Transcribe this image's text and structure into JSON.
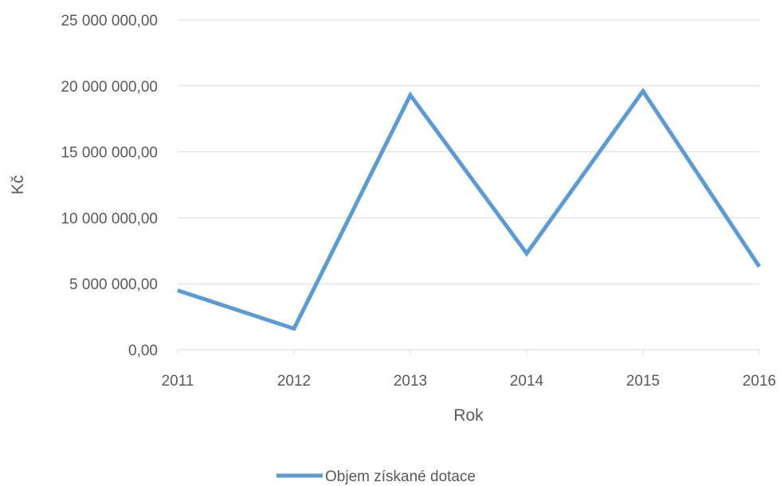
{
  "chart_data": {
    "type": "line",
    "title": "",
    "xlabel": "Rok",
    "ylabel": "Kč",
    "x": [
      "2011",
      "2012",
      "2013",
      "2014",
      "2015",
      "2016"
    ],
    "y_ticks": [
      "0,00",
      "5 000 000,00",
      "10 000 000,00",
      "15 000 000,00",
      "20 000 000,00",
      "25 000 000,00"
    ],
    "ylim": [
      0,
      25000000
    ],
    "grid": true,
    "legend_position": "bottom",
    "series": [
      {
        "name": "Objem získané dotace",
        "color": "#5B9BD5",
        "values": [
          4500000,
          1600000,
          19300000,
          7300000,
          19600000,
          6300000
        ]
      }
    ]
  }
}
